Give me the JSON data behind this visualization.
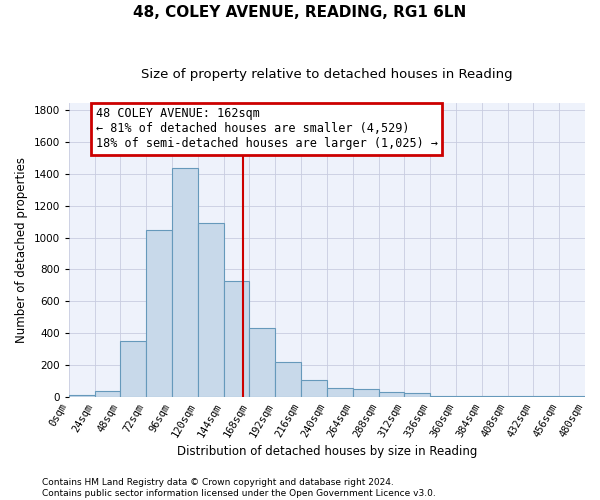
{
  "title": "48, COLEY AVENUE, READING, RG1 6LN",
  "subtitle": "Size of property relative to detached houses in Reading",
  "xlabel": "Distribution of detached houses by size in Reading",
  "ylabel": "Number of detached properties",
  "bar_color": "#c8d9ea",
  "bar_edge_color": "#6699bb",
  "bin_edges": [
    0,
    24,
    48,
    72,
    96,
    120,
    144,
    168,
    192,
    216,
    240,
    264,
    288,
    312,
    336,
    360,
    384,
    408,
    432,
    456,
    480
  ],
  "bar_heights": [
    10,
    35,
    350,
    1050,
    1440,
    1090,
    730,
    430,
    215,
    105,
    52,
    45,
    30,
    20,
    5,
    3,
    3,
    2,
    1,
    1
  ],
  "tick_labels": [
    "0sqm",
    "24sqm",
    "48sqm",
    "72sqm",
    "96sqm",
    "120sqm",
    "144sqm",
    "168sqm",
    "192sqm",
    "216sqm",
    "240sqm",
    "264sqm",
    "288sqm",
    "312sqm",
    "336sqm",
    "360sqm",
    "384sqm",
    "408sqm",
    "432sqm",
    "456sqm",
    "480sqm"
  ],
  "property_size": 162,
  "vline_color": "#cc0000",
  "annotation_line1": "48 COLEY AVENUE: 162sqm",
  "annotation_line2": "← 81% of detached houses are smaller (4,529)",
  "annotation_line3": "18% of semi-detached houses are larger (1,025) →",
  "annotation_box_color": "#ffffff",
  "annotation_box_edge": "#cc0000",
  "ylim": [
    0,
    1850
  ],
  "yticks": [
    0,
    200,
    400,
    600,
    800,
    1000,
    1200,
    1400,
    1600,
    1800
  ],
  "footer1": "Contains HM Land Registry data © Crown copyright and database right 2024.",
  "footer2": "Contains public sector information licensed under the Open Government Licence v3.0.",
  "background_color": "#eef2fb",
  "grid_color": "#c8cce0",
  "title_fontsize": 11,
  "subtitle_fontsize": 9.5,
  "axis_label_fontsize": 8.5,
  "tick_fontsize": 7.5,
  "footer_fontsize": 6.5,
  "annotation_fontsize": 8.5
}
